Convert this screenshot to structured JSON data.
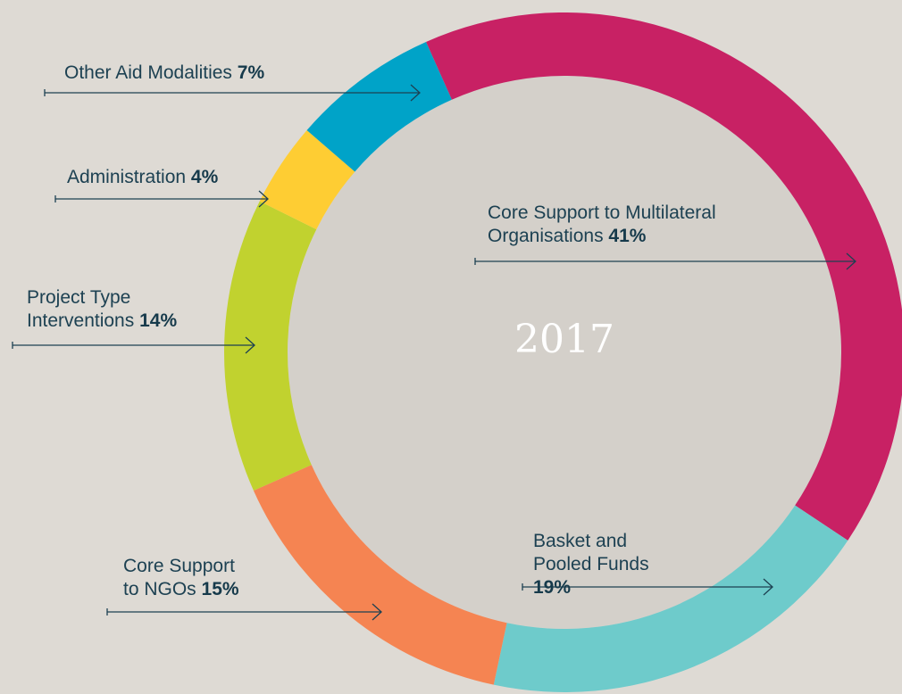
{
  "chart_data": {
    "type": "donut",
    "center_text": "2017",
    "categories": [
      "Core Support to Multilateral Organisations",
      "Basket and Pooled Funds",
      "Core Support to NGOs",
      "Project Type Interventions",
      "Administration",
      "Other Aid Modalities"
    ],
    "values": [
      41,
      19,
      15,
      14,
      4,
      7
    ],
    "value_labels": [
      "41%",
      "19%",
      "15%",
      "14%",
      "4%",
      "7%"
    ],
    "colors": [
      "#c82164",
      "#6ecbcb",
      "#f58452",
      "#c1d22f",
      "#fecd33",
      "#00a3c8"
    ]
  }
}
